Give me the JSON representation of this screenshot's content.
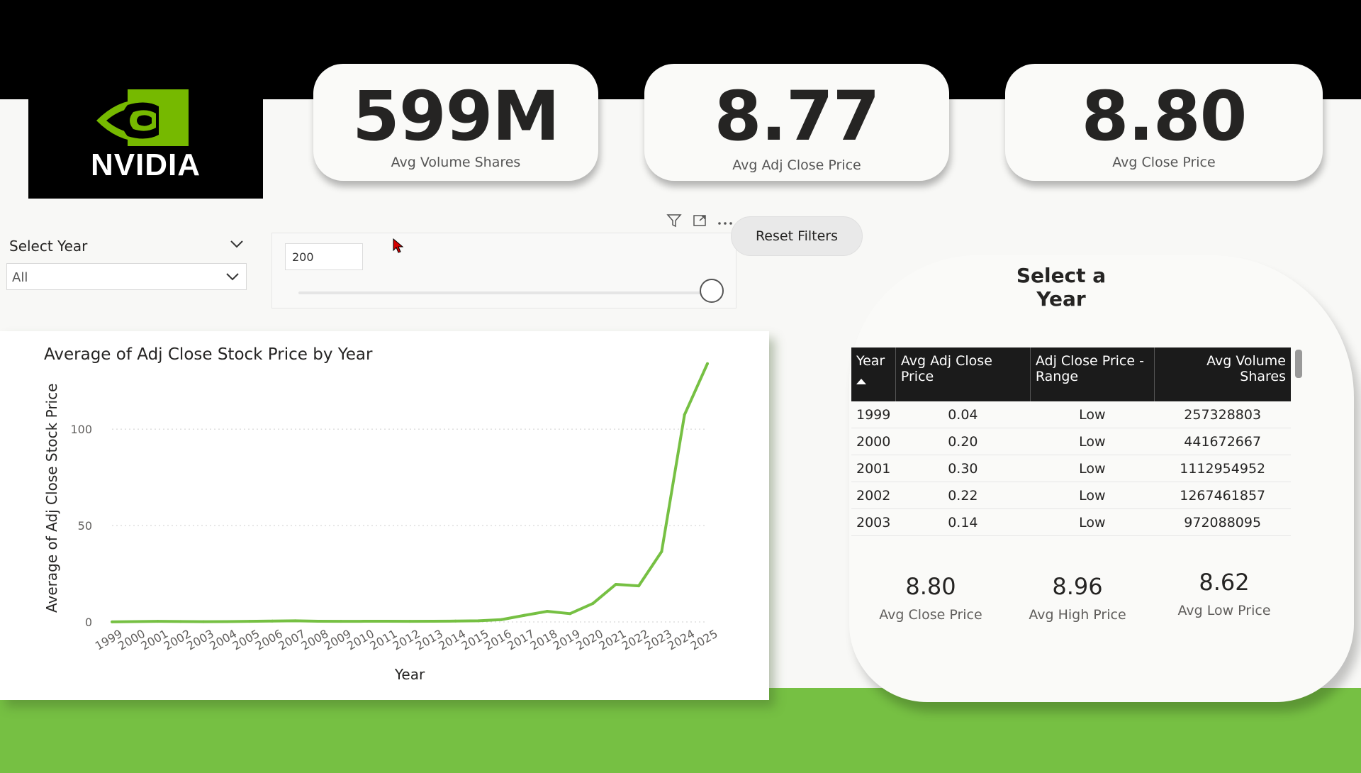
{
  "brand": {
    "logo_text": "NVIDIA",
    "logo_color": "#76b900"
  },
  "kpis": [
    {
      "value": "599M",
      "label": "Avg Volume Shares"
    },
    {
      "value": "8.77",
      "label": "Avg Adj Close Price"
    },
    {
      "value": "8.80",
      "label": "Avg Close Price"
    }
  ],
  "year_slicer": {
    "title": "Select Year",
    "selected": "All"
  },
  "range_slicer": {
    "value": "200"
  },
  "reset_button": {
    "label": "Reset Filters"
  },
  "table_panel": {
    "title": "Select a Year",
    "columns": [
      "Year",
      "Avg Adj Close Price",
      "Adj Close Price - Range",
      "Avg Volume Shares"
    ],
    "rows": [
      [
        "1999",
        "0.04",
        "Low",
        "257328803"
      ],
      [
        "2000",
        "0.20",
        "Low",
        "441672667"
      ],
      [
        "2001",
        "0.30",
        "Low",
        "1112954952"
      ],
      [
        "2002",
        "0.22",
        "Low",
        "1267461857"
      ],
      [
        "2003",
        "0.14",
        "Low",
        "972088095"
      ]
    ]
  },
  "mini_kpis": [
    {
      "value": "8.80",
      "label": "Avg Close Price"
    },
    {
      "value": "8.96",
      "label": "Avg High Price"
    },
    {
      "value": "8.62",
      "label": "Avg Low Price"
    }
  ],
  "chart_data": {
    "type": "line",
    "title": "Average of Adj Close Stock Price by Year",
    "xlabel": "Year",
    "ylabel": "Average of Adj Close Stock Price",
    "x": [
      "1999",
      "2000",
      "2001",
      "2002",
      "2003",
      "2004",
      "2005",
      "2006",
      "2007",
      "2008",
      "2009",
      "2010",
      "2011",
      "2012",
      "2013",
      "2014",
      "2015",
      "2016",
      "2017",
      "2018",
      "2019",
      "2020",
      "2021",
      "2022",
      "2023",
      "2024",
      "2025"
    ],
    "series": [
      {
        "values": [
          0.04,
          0.2,
          0.3,
          0.22,
          0.14,
          0.2,
          0.3,
          0.45,
          0.6,
          0.35,
          0.3,
          0.35,
          0.35,
          0.3,
          0.35,
          0.45,
          0.6,
          1.2,
          3.4,
          5.5,
          4.3,
          9.6,
          19.5,
          18.7,
          36.5,
          107.5,
          134.0
        ],
        "color": "#76c043"
      }
    ],
    "yticks": [
      0,
      50,
      100
    ],
    "ylim": [
      0,
      135
    ],
    "grid": true
  }
}
